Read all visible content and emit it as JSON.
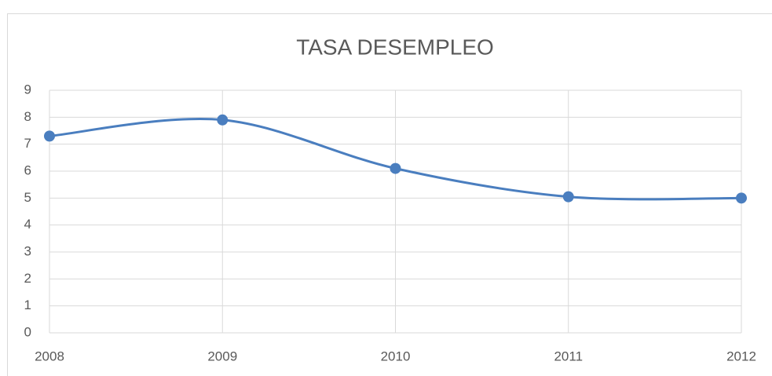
{
  "chart_data": {
    "type": "line",
    "title": "TASA DESEMPLEO",
    "x": [
      2008,
      2009,
      2010,
      2011,
      2012
    ],
    "series": [
      {
        "color": "#4a7ebf",
        "values": [
          7.3,
          7.9,
          6.1,
          5.05,
          5.0
        ]
      }
    ],
    "xlim": [
      2008,
      2012
    ],
    "xticks": [
      2008,
      2009,
      2010,
      2011,
      2012
    ],
    "ylim": [
      0,
      9
    ],
    "yticks": [
      0,
      1,
      2,
      3,
      4,
      5,
      6,
      7,
      8,
      9
    ],
    "grid": true,
    "smooth": true
  }
}
